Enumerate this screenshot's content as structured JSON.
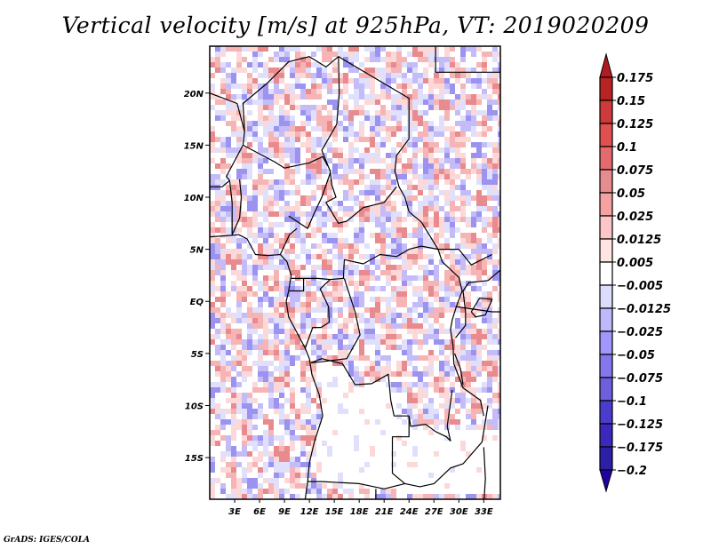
{
  "title": "Vertical velocity [m/s] at 925hPa, VT: 2019020209",
  "credit": "GrADS: IGES/COLA",
  "map": {
    "variable": "Vertical velocity",
    "units": "m/s",
    "level": "925hPa",
    "valid_time": "2019020209",
    "lon_range": [
      0,
      35
    ],
    "lat_range": [
      -19,
      24.5
    ],
    "lat_ticks": [
      {
        "value": 20,
        "label": "20N"
      },
      {
        "value": 15,
        "label": "15N"
      },
      {
        "value": 10,
        "label": "10N"
      },
      {
        "value": 5,
        "label": "5N"
      },
      {
        "value": 0,
        "label": "EQ"
      },
      {
        "value": -5,
        "label": "5S"
      },
      {
        "value": -10,
        "label": "10S"
      },
      {
        "value": -15,
        "label": "15S"
      }
    ],
    "lon_ticks": [
      {
        "value": 3,
        "label": "3E"
      },
      {
        "value": 6,
        "label": "6E"
      },
      {
        "value": 9,
        "label": "9E"
      },
      {
        "value": 12,
        "label": "12E"
      },
      {
        "value": 15,
        "label": "15E"
      },
      {
        "value": 18,
        "label": "18E"
      },
      {
        "value": 21,
        "label": "21E"
      },
      {
        "value": 24,
        "label": "24E"
      },
      {
        "value": 27,
        "label": "27E"
      },
      {
        "value": 30,
        "label": "30E"
      },
      {
        "value": 33,
        "label": "33E"
      }
    ]
  },
  "colorbar": {
    "top_arrow_color": "#b01c20",
    "bottom_arrow_color": "#2200a0",
    "bins": [
      {
        "color": "#b82424"
      },
      {
        "color": "#cc3a3c"
      },
      {
        "color": "#e05050"
      },
      {
        "color": "#e46a6e"
      },
      {
        "color": "#e48c90"
      },
      {
        "color": "#f4a2a2"
      },
      {
        "color": "#fcc6c6"
      },
      {
        "color": "#ffe4e4"
      },
      {
        "color": "#ffffff"
      },
      {
        "color": "#dcdcfc"
      },
      {
        "color": "#c0b8fc"
      },
      {
        "color": "#a096fc"
      },
      {
        "color": "#8478ec"
      },
      {
        "color": "#6e60dc"
      },
      {
        "color": "#4a3ccc"
      },
      {
        "color": "#3c28bc"
      },
      {
        "color": "#2e20a6"
      }
    ],
    "labels": [
      "0.175",
      "0.15",
      "0.125",
      "0.1",
      "0.075",
      "0.05",
      "0.025",
      "0.0125",
      "0.005",
      "−0.005",
      "−0.0125",
      "−0.025",
      "−0.05",
      "−0.075",
      "−0.1",
      "−0.125",
      "−0.175",
      "−0.2"
    ]
  },
  "field_palette": {
    "strong_up": "#e88a8e",
    "up": "#f6b4b4",
    "weak_up": "#fcd8d8",
    "neutral": "#ffffff",
    "weak_down": "#e0e0fc",
    "down": "#c4bcf8",
    "strong_down": "#9c92f0"
  }
}
